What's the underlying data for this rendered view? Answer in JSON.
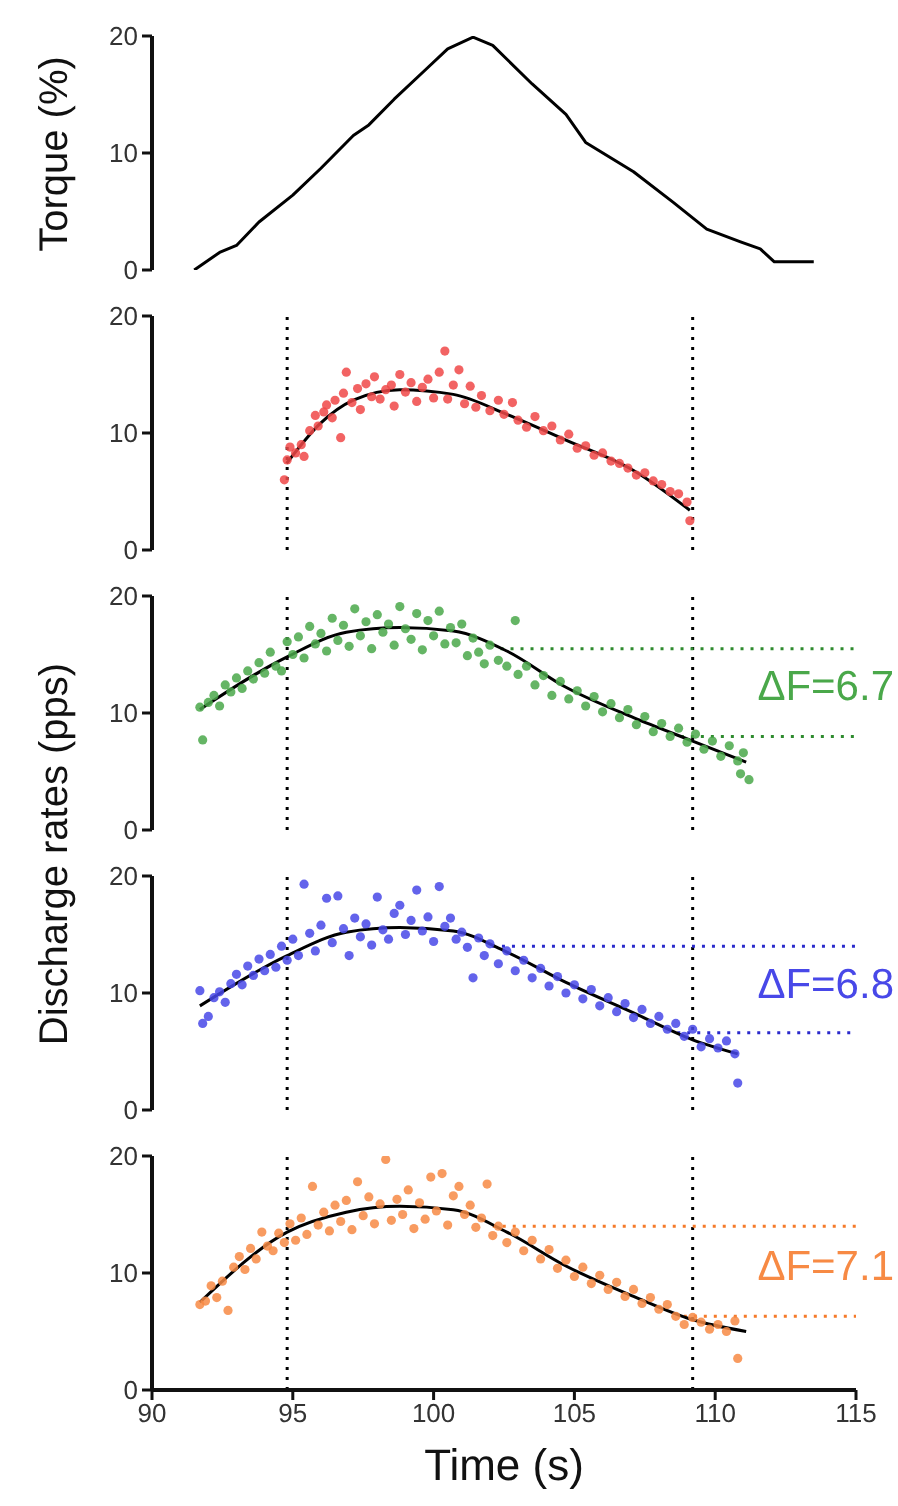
{
  "chart_data": [
    {
      "type": "line",
      "ylabel": "Torque (%)",
      "xlim": [
        90,
        115
      ],
      "xticks": [
        90,
        95,
        100,
        105,
        110,
        115
      ],
      "ylim": [
        0,
        20
      ],
      "yticks": [
        0,
        10,
        20
      ],
      "tick_labels": "y",
      "series": [
        {
          "color": "#000000",
          "x": [
            91.5,
            92.4,
            93.0,
            93.8,
            95.0,
            96.0,
            97.15,
            97.7,
            98.6,
            99.75,
            100.5,
            101.4,
            102.1,
            103.5,
            104.7,
            105.4,
            107.1,
            108.5,
            109.7,
            110.9,
            111.6,
            112.1,
            113.5
          ],
          "values": [
            0,
            1.5,
            2.1,
            4.1,
            6.4,
            8.7,
            11.5,
            12.4,
            14.6,
            17.2,
            18.9,
            19.9,
            19.2,
            15.9,
            13.3,
            10.9,
            8.4,
            5.8,
            3.5,
            2.4,
            1.8,
            0.7,
            0.7
          ]
        }
      ]
    },
    {
      "type": "scatter",
      "ylabel": "Discharge rates (pps)",
      "xlim": [
        90,
        115
      ],
      "xticks": [
        90,
        95,
        100,
        105,
        110,
        115
      ],
      "ylim": [
        0,
        20
      ],
      "yticks": [
        0,
        10,
        20
      ],
      "tick_labels": "y",
      "ref_lines": [
        {
          "axis": "x",
          "value": 94.8,
          "color": "#000000",
          "line_style": "dotted"
        },
        {
          "axis": "x",
          "value": 109.2,
          "color": "#000000",
          "line_style": "dotted"
        }
      ],
      "series": [
        {
          "marker": "circle",
          "color": "#f04848",
          "x": [
            94.7,
            94.8,
            94.9,
            95.1,
            95.3,
            95.4,
            95.6,
            95.8,
            95.9,
            96.1,
            96.2,
            96.4,
            96.5,
            96.7,
            96.8,
            96.9,
            97.1,
            97.3,
            97.4,
            97.6,
            97.8,
            97.9,
            98.1,
            98.3,
            98.5,
            98.6,
            98.8,
            99.0,
            99.2,
            99.4,
            99.6,
            99.8,
            100.0,
            100.2,
            100.4,
            100.5,
            100.7,
            100.9,
            101.1,
            101.3,
            101.5,
            101.7,
            102.0,
            102.3,
            102.5,
            102.8,
            103.0,
            103.3,
            103.6,
            103.9,
            104.2,
            104.5,
            104.8,
            105.1,
            105.4,
            105.7,
            106.0,
            106.3,
            106.6,
            106.9,
            107.2,
            107.5,
            107.8,
            108.1,
            108.4,
            108.7,
            109.0,
            109.1
          ],
          "values": [
            6.0,
            7.7,
            8.8,
            8.3,
            9.0,
            8.0,
            10.2,
            11.5,
            10.6,
            11.8,
            12.4,
            11.3,
            12.8,
            9.6,
            13.4,
            15.2,
            12.6,
            13.8,
            12.0,
            14.2,
            13.1,
            14.8,
            12.9,
            13.7,
            14.1,
            12.3,
            15.0,
            13.5,
            14.3,
            12.7,
            13.9,
            14.6,
            13.0,
            15.2,
            17.0,
            12.9,
            14.1,
            15.4,
            12.5,
            14.0,
            12.2,
            13.2,
            11.9,
            12.8,
            11.6,
            12.6,
            11.1,
            10.5,
            11.4,
            10.2,
            10.6,
            9.4,
            9.9,
            8.7,
            8.9,
            8.1,
            8.3,
            7.6,
            7.4,
            7.0,
            6.4,
            6.6,
            5.9,
            5.6,
            5.0,
            4.8,
            4.1,
            2.5
          ]
        },
        {
          "type": "line",
          "color": "#000000",
          "x": [
            94.78,
            95.97,
            97.15,
            98.8,
            100.7,
            102.6,
            104.7,
            107.1,
            109.1
          ],
          "values": [
            7.4,
            10.8,
            12.8,
            13.7,
            13.3,
            11.6,
            9.4,
            6.8,
            3.4
          ]
        }
      ]
    },
    {
      "type": "scatter",
      "xlim": [
        90,
        115
      ],
      "xticks": [
        90,
        95,
        100,
        105,
        110,
        115
      ],
      "ylim": [
        0,
        20
      ],
      "yticks": [
        0,
        10,
        20
      ],
      "tick_labels": "y",
      "annotations": [
        "ΔF=6.7"
      ],
      "ref_lines": [
        {
          "axis": "x",
          "value": 94.8,
          "color": "#000000",
          "line_style": "dotted"
        },
        {
          "axis": "x",
          "value": 109.2,
          "color": "#000000",
          "line_style": "dotted"
        },
        {
          "axis": "y",
          "value": 15.5,
          "color": "#2e8b2e",
          "line_style": "dotted"
        },
        {
          "axis": "y",
          "value": 8.0,
          "color": "#2e8b2e",
          "line_style": "dotted"
        }
      ],
      "series": [
        {
          "marker": "circle",
          "color": "#4aa84a",
          "x": [
            91.7,
            91.8,
            92.0,
            92.2,
            92.4,
            92.6,
            92.8,
            93.0,
            93.2,
            93.4,
            93.6,
            93.8,
            94.0,
            94.2,
            94.4,
            94.6,
            94.8,
            95.0,
            95.2,
            95.4,
            95.6,
            95.8,
            96.0,
            96.2,
            96.4,
            96.6,
            96.8,
            97.0,
            97.2,
            97.4,
            97.6,
            97.8,
            98.0,
            98.2,
            98.4,
            98.6,
            98.8,
            99.0,
            99.2,
            99.4,
            99.6,
            99.8,
            100.0,
            100.2,
            100.4,
            100.6,
            100.8,
            101.0,
            101.2,
            101.4,
            101.6,
            101.8,
            102.0,
            102.3,
            102.6,
            102.9,
            103.0,
            103.3,
            103.6,
            103.9,
            104.2,
            104.5,
            104.8,
            105.1,
            105.4,
            105.7,
            106.0,
            106.3,
            106.6,
            106.9,
            107.2,
            107.5,
            107.8,
            108.1,
            108.4,
            108.7,
            109.0,
            109.3,
            109.6,
            109.9,
            110.2,
            110.5,
            110.8,
            110.9,
            111.2,
            111.0
          ],
          "values": [
            10.5,
            7.7,
            10.9,
            11.5,
            10.6,
            12.4,
            11.8,
            13.0,
            12.1,
            13.6,
            12.9,
            14.3,
            13.4,
            15.2,
            14.0,
            13.6,
            16.1,
            15.0,
            16.5,
            14.7,
            17.4,
            15.9,
            16.8,
            15.3,
            18.1,
            16.2,
            17.5,
            15.7,
            18.9,
            16.6,
            17.8,
            15.5,
            18.4,
            16.9,
            17.6,
            15.8,
            19.1,
            17.2,
            16.3,
            18.5,
            15.4,
            17.9,
            16.6,
            18.7,
            15.9,
            17.3,
            16.0,
            17.6,
            14.9,
            16.4,
            15.2,
            14.2,
            15.8,
            14.5,
            14.0,
            17.9,
            13.3,
            14.0,
            12.4,
            13.2,
            11.5,
            12.7,
            11.2,
            11.9,
            10.6,
            11.4,
            10.1,
            10.8,
            9.6,
            10.3,
            9.0,
            9.7,
            8.4,
            9.1,
            8.0,
            8.7,
            7.5,
            8.2,
            6.9,
            7.6,
            6.3,
            7.2,
            5.9,
            4.8,
            4.3,
            6.6
          ]
        },
        {
          "type": "line",
          "color": "#000000",
          "x": [
            91.7,
            94.8,
            96.9,
            98.8,
            100.7,
            102.6,
            104.7,
            107.1,
            109.2,
            111.1
          ],
          "values": [
            10.3,
            14.8,
            16.9,
            17.3,
            17.0,
            15.3,
            12.2,
            9.6,
            7.6,
            5.8
          ]
        }
      ]
    },
    {
      "type": "scatter",
      "xlim": [
        90,
        115
      ],
      "xticks": [
        90,
        95,
        100,
        105,
        110,
        115
      ],
      "ylim": [
        0,
        20
      ],
      "yticks": [
        0,
        10,
        20
      ],
      "tick_labels": "y",
      "annotations": [
        "ΔF=6.8"
      ],
      "ref_lines": [
        {
          "axis": "x",
          "value": 94.8,
          "color": "#000000",
          "line_style": "dotted"
        },
        {
          "axis": "x",
          "value": 109.2,
          "color": "#000000",
          "line_style": "dotted"
        },
        {
          "axis": "y",
          "value": 14.0,
          "color": "#2a2acc",
          "line_style": "dotted"
        },
        {
          "axis": "y",
          "value": 6.6,
          "color": "#2a2acc",
          "line_style": "dotted"
        }
      ],
      "series": [
        {
          "marker": "circle",
          "color": "#4848e8",
          "x": [
            91.7,
            91.8,
            92.0,
            92.2,
            92.4,
            92.6,
            92.8,
            93.0,
            93.2,
            93.4,
            93.6,
            93.8,
            94.0,
            94.2,
            94.4,
            94.6,
            94.8,
            95.0,
            95.2,
            95.4,
            95.6,
            95.8,
            96.0,
            96.2,
            96.4,
            96.6,
            96.8,
            97.0,
            97.2,
            97.4,
            97.6,
            97.8,
            98.0,
            98.2,
            98.4,
            98.6,
            98.8,
            99.0,
            99.2,
            99.4,
            99.6,
            99.8,
            100.0,
            100.2,
            100.4,
            100.6,
            100.8,
            101.0,
            101.2,
            101.4,
            101.6,
            101.8,
            102.0,
            102.3,
            102.6,
            102.9,
            103.2,
            103.5,
            103.8,
            104.1,
            104.4,
            104.7,
            105.0,
            105.3,
            105.6,
            105.9,
            106.2,
            106.5,
            106.8,
            107.1,
            107.4,
            107.7,
            108.0,
            108.3,
            108.6,
            108.9,
            109.2,
            109.5,
            109.8,
            110.1,
            110.4,
            110.7,
            110.8
          ],
          "values": [
            10.2,
            7.4,
            8.0,
            9.6,
            10.1,
            9.2,
            10.8,
            11.6,
            10.7,
            12.3,
            11.5,
            12.9,
            11.9,
            13.3,
            12.2,
            14.0,
            12.8,
            14.6,
            13.2,
            19.3,
            15.1,
            13.6,
            15.8,
            18.1,
            14.3,
            18.3,
            15.5,
            13.2,
            16.4,
            14.8,
            15.9,
            14.1,
            18.2,
            15.4,
            14.6,
            16.8,
            17.5,
            15.0,
            16.2,
            18.8,
            15.3,
            16.5,
            14.4,
            19.1,
            15.7,
            16.4,
            14.6,
            15.2,
            13.9,
            11.3,
            14.7,
            13.2,
            14.2,
            12.5,
            13.6,
            11.9,
            12.8,
            11.3,
            12.1,
            10.6,
            11.4,
            10.0,
            10.7,
            9.5,
            10.3,
            8.9,
            9.6,
            8.4,
            9.1,
            7.9,
            8.6,
            7.4,
            8.0,
            6.9,
            7.4,
            6.3,
            6.9,
            5.4,
            6.1,
            5.3,
            5.9,
            4.8,
            2.3
          ]
        },
        {
          "type": "line",
          "color": "#000000",
          "x": [
            91.7,
            94.8,
            96.9,
            98.8,
            100.7,
            102.6,
            104.7,
            107.1,
            109.2,
            110.8
          ],
          "values": [
            8.9,
            13.2,
            15.2,
            15.6,
            15.3,
            13.5,
            10.9,
            8.3,
            6.0,
            4.8
          ]
        }
      ]
    },
    {
      "type": "scatter",
      "xlabel": "Time (s)",
      "xlim": [
        90,
        115
      ],
      "xticks": [
        90,
        95,
        100,
        105,
        110,
        115
      ],
      "ylim": [
        0,
        20
      ],
      "yticks": [
        0,
        10,
        20
      ],
      "annotations": [
        "ΔF=7.1"
      ],
      "ref_lines": [
        {
          "axis": "x",
          "value": 94.8,
          "color": "#000000",
          "line_style": "dotted"
        },
        {
          "axis": "x",
          "value": 109.2,
          "color": "#000000",
          "line_style": "dotted"
        },
        {
          "axis": "y",
          "value": 14.0,
          "color": "#f57a2a",
          "line_style": "dotted"
        },
        {
          "axis": "y",
          "value": 6.3,
          "color": "#f57a2a",
          "line_style": "dotted"
        }
      ],
      "series": [
        {
          "marker": "circle",
          "color": "#f78a44",
          "x": [
            91.7,
            91.9,
            92.1,
            92.3,
            92.5,
            92.7,
            92.9,
            93.1,
            93.3,
            93.5,
            93.7,
            93.9,
            94.1,
            94.3,
            94.5,
            94.7,
            94.9,
            95.1,
            95.3,
            95.5,
            95.7,
            95.9,
            96.1,
            96.3,
            96.5,
            96.7,
            96.9,
            97.1,
            97.3,
            97.5,
            97.7,
            97.9,
            98.1,
            98.3,
            98.5,
            98.7,
            98.9,
            99.1,
            99.3,
            99.5,
            99.7,
            99.9,
            100.1,
            100.3,
            100.5,
            100.7,
            100.9,
            101.1,
            101.3,
            101.5,
            101.7,
            101.9,
            102.1,
            102.3,
            102.6,
            102.9,
            103.2,
            103.5,
            103.8,
            104.1,
            104.4,
            104.7,
            105.0,
            105.3,
            105.6,
            105.9,
            106.2,
            106.5,
            106.8,
            107.1,
            107.4,
            107.7,
            108.0,
            108.3,
            108.6,
            108.9,
            109.2,
            109.5,
            109.8,
            110.1,
            110.4,
            110.7,
            110.8
          ],
          "values": [
            7.3,
            7.6,
            8.9,
            7.9,
            9.3,
            6.8,
            10.5,
            11.4,
            10.3,
            12.1,
            11.2,
            13.5,
            12.3,
            11.9,
            13.4,
            12.6,
            14.2,
            12.8,
            14.7,
            13.3,
            17.4,
            14.1,
            15.2,
            13.6,
            15.8,
            14.4,
            16.2,
            13.7,
            17.8,
            14.9,
            16.5,
            14.2,
            15.9,
            19.7,
            14.5,
            16.3,
            15.0,
            17.1,
            13.8,
            16.0,
            14.6,
            18.2,
            15.3,
            18.5,
            14.1,
            16.6,
            17.4,
            15.0,
            15.8,
            13.9,
            14.7,
            17.6,
            13.2,
            14.0,
            12.6,
            13.5,
            11.9,
            12.8,
            11.2,
            12.0,
            10.4,
            11.1,
            9.7,
            10.5,
            9.1,
            9.8,
            8.6,
            9.2,
            8.0,
            8.6,
            7.4,
            7.9,
            6.9,
            7.3,
            6.3,
            5.6,
            6.2,
            5.8,
            5.2,
            5.6,
            5.0,
            5.9,
            2.7
          ]
        },
        {
          "type": "line",
          "color": "#000000",
          "x": [
            91.7,
            94.8,
            96.9,
            98.8,
            100.7,
            102.6,
            104.7,
            107.1,
            109.2,
            111.1
          ],
          "values": [
            7.5,
            13.5,
            15.2,
            15.7,
            15.4,
            13.5,
            10.6,
            8.0,
            6.0,
            5.0
          ]
        }
      ]
    }
  ]
}
